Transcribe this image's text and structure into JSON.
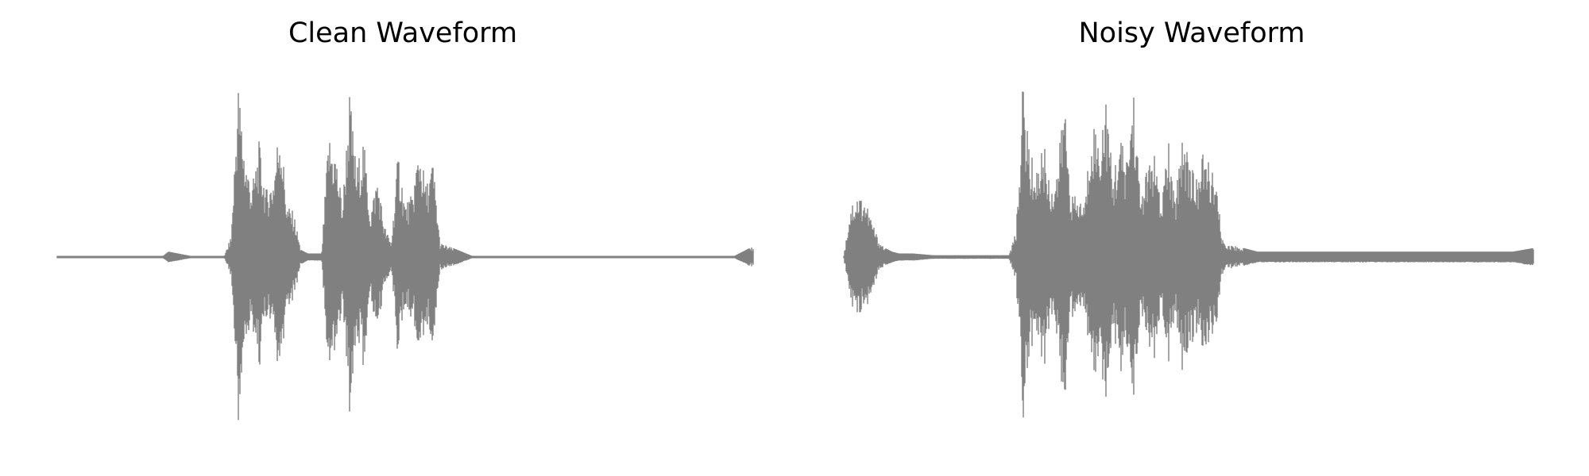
{
  "chart_data": [
    {
      "type": "area",
      "title": "Clean Waveform",
      "xlabel": "",
      "ylabel": "",
      "axes_visible": false,
      "grid": false,
      "color": "#808080",
      "ylim": [
        -1.0,
        1.0
      ],
      "x": [
        0.0,
        0.05,
        0.1,
        0.15,
        0.16,
        0.2,
        0.24,
        0.25,
        0.26,
        0.27,
        0.28,
        0.29,
        0.3,
        0.31,
        0.32,
        0.33,
        0.34,
        0.35,
        0.36,
        0.37,
        0.38,
        0.39,
        0.4,
        0.41,
        0.42,
        0.43,
        0.44,
        0.45,
        0.46,
        0.47,
        0.48,
        0.49,
        0.5,
        0.51,
        0.52,
        0.53,
        0.54,
        0.55,
        0.6,
        0.7,
        0.8,
        0.9,
        0.97,
        1.0
      ],
      "values": [
        0.0,
        0.0,
        0.0,
        0.0,
        0.03,
        0.0,
        0.0,
        0.12,
        1.0,
        0.58,
        0.4,
        0.65,
        0.38,
        0.45,
        0.8,
        0.3,
        0.25,
        0.04,
        0.02,
        0.02,
        0.02,
        0.7,
        0.6,
        0.3,
        0.94,
        0.5,
        0.68,
        0.25,
        0.47,
        0.18,
        0.08,
        0.6,
        0.3,
        0.35,
        0.65,
        0.4,
        0.55,
        0.08,
        0.0,
        0.0,
        0.0,
        0.0,
        0.0,
        0.06
      ]
    },
    {
      "type": "area",
      "title": "Noisy Waveform",
      "xlabel": "",
      "ylabel": "",
      "axes_visible": false,
      "grid": false,
      "color": "#808080",
      "ylim": [
        -1.0,
        1.0
      ],
      "x": [
        0.0,
        0.01,
        0.02,
        0.03,
        0.04,
        0.05,
        0.06,
        0.07,
        0.08,
        0.1,
        0.13,
        0.16,
        0.2,
        0.24,
        0.25,
        0.26,
        0.27,
        0.28,
        0.29,
        0.3,
        0.31,
        0.32,
        0.33,
        0.34,
        0.35,
        0.36,
        0.37,
        0.38,
        0.39,
        0.4,
        0.41,
        0.42,
        0.43,
        0.44,
        0.45,
        0.46,
        0.47,
        0.48,
        0.49,
        0.5,
        0.51,
        0.52,
        0.53,
        0.54,
        0.55,
        0.6,
        0.7,
        0.8,
        0.9,
        0.97,
        1.0
      ],
      "values": [
        0.0,
        0.3,
        0.36,
        0.34,
        0.22,
        0.1,
        0.05,
        0.03,
        0.02,
        0.02,
        0.01,
        0.01,
        0.01,
        0.01,
        0.15,
        1.0,
        0.58,
        0.5,
        0.65,
        0.4,
        0.5,
        0.92,
        0.35,
        0.33,
        0.32,
        0.82,
        0.65,
        0.92,
        0.45,
        0.68,
        0.55,
        0.98,
        0.35,
        0.5,
        0.6,
        0.28,
        0.68,
        0.3,
        0.72,
        0.6,
        0.42,
        0.58,
        0.55,
        0.4,
        0.08,
        0.03,
        0.03,
        0.03,
        0.03,
        0.03,
        0.05
      ]
    }
  ]
}
